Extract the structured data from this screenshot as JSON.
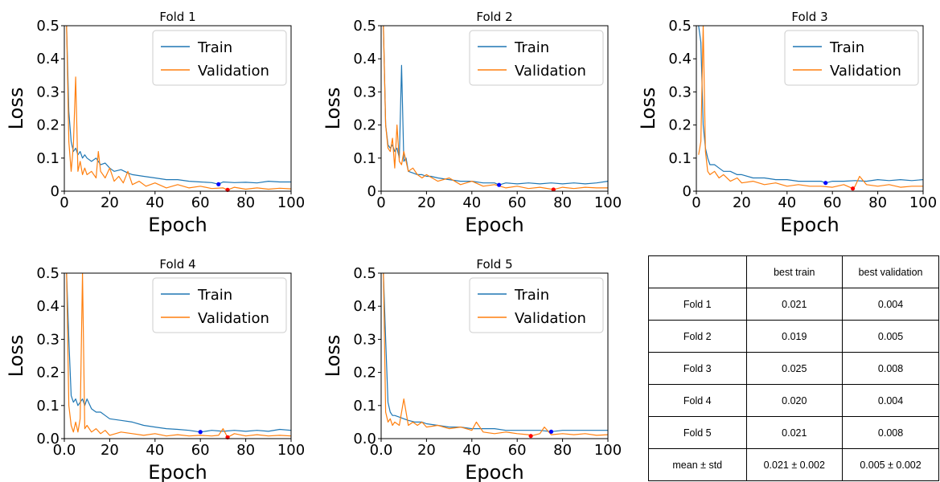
{
  "chart_data": [
    {
      "type": "line",
      "title": "Fold 1",
      "xlabel": "Epoch",
      "ylabel": "Loss",
      "xlim": [
        0,
        100
      ],
      "ylim": [
        0,
        0.5
      ],
      "xticks": [
        "0",
        "20",
        "40",
        "60",
        "80",
        "100"
      ],
      "yticks": [
        "0",
        "0.1",
        "0.2",
        "0.3",
        "0.4",
        "0.5"
      ],
      "legend": "top-right",
      "series": [
        {
          "name": "Train",
          "color": "#1f77b4",
          "x": [
            1,
            2,
            3,
            4,
            5,
            6,
            7,
            8,
            9,
            10,
            12,
            14,
            16,
            18,
            20,
            22,
            25,
            28,
            30,
            35,
            40,
            45,
            50,
            55,
            60,
            65,
            68,
            70,
            75,
            80,
            85,
            90,
            95,
            100
          ],
          "values": [
            0.5,
            0.24,
            0.15,
            0.12,
            0.13,
            0.11,
            0.12,
            0.1,
            0.11,
            0.1,
            0.09,
            0.1,
            0.08,
            0.085,
            0.07,
            0.06,
            0.065,
            0.055,
            0.05,
            0.045,
            0.04,
            0.035,
            0.035,
            0.03,
            0.028,
            0.026,
            0.021,
            0.028,
            0.026,
            0.027,
            0.025,
            0.03,
            0.028,
            0.028
          ],
          "best": {
            "x": 68,
            "y": 0.021,
            "color": "#0000ff"
          }
        },
        {
          "name": "Validation",
          "color": "#ff7f0e",
          "x": [
            1,
            2,
            3,
            4,
            5,
            6,
            7,
            8,
            9,
            10,
            12,
            14,
            15,
            16,
            18,
            20,
            22,
            24,
            26,
            28,
            30,
            33,
            36,
            40,
            45,
            50,
            55,
            60,
            65,
            70,
            72,
            75,
            80,
            85,
            90,
            95,
            100
          ],
          "values": [
            0.5,
            0.15,
            0.06,
            0.14,
            0.345,
            0.06,
            0.09,
            0.05,
            0.07,
            0.05,
            0.06,
            0.04,
            0.12,
            0.06,
            0.04,
            0.07,
            0.03,
            0.045,
            0.025,
            0.06,
            0.02,
            0.03,
            0.015,
            0.025,
            0.01,
            0.02,
            0.01,
            0.015,
            0.008,
            0.01,
            0.004,
            0.012,
            0.006,
            0.01,
            0.006,
            0.009,
            0.007
          ],
          "best": {
            "x": 72,
            "y": 0.004,
            "color": "#ff0000"
          }
        }
      ]
    },
    {
      "type": "line",
      "title": "Fold 2",
      "xlabel": "Epoch",
      "ylabel": "Loss",
      "xlim": [
        0,
        100
      ],
      "ylim": [
        0,
        0.5
      ],
      "xticks": [
        "0",
        "20",
        "40",
        "60",
        "80",
        "100"
      ],
      "yticks": [
        "0",
        "0.1",
        "0.2",
        "0.3",
        "0.4",
        "0.5"
      ],
      "legend": "top-right",
      "series": [
        {
          "name": "Train",
          "color": "#1f77b4",
          "x": [
            1,
            2,
            3,
            4,
            5,
            6,
            7,
            8,
            9,
            10,
            11,
            12,
            14,
            16,
            18,
            20,
            22,
            25,
            30,
            35,
            40,
            45,
            50,
            52,
            55,
            60,
            65,
            70,
            75,
            80,
            85,
            90,
            95,
            100
          ],
          "values": [
            0.5,
            0.2,
            0.14,
            0.13,
            0.14,
            0.12,
            0.13,
            0.1,
            0.38,
            0.09,
            0.1,
            0.06,
            0.055,
            0.05,
            0.05,
            0.045,
            0.045,
            0.04,
            0.035,
            0.03,
            0.03,
            0.025,
            0.025,
            0.019,
            0.025,
            0.022,
            0.025,
            0.022,
            0.025,
            0.022,
            0.025,
            0.022,
            0.025,
            0.03
          ],
          "best": {
            "x": 52,
            "y": 0.019,
            "color": "#0000ff"
          }
        },
        {
          "name": "Validation",
          "color": "#ff7f0e",
          "x": [
            1,
            2,
            3,
            4,
            5,
            6,
            7,
            8,
            9,
            10,
            12,
            14,
            16,
            18,
            20,
            25,
            30,
            35,
            40,
            45,
            50,
            55,
            60,
            65,
            70,
            76,
            80,
            85,
            90,
            95,
            100
          ],
          "values": [
            0.5,
            0.2,
            0.13,
            0.12,
            0.16,
            0.07,
            0.2,
            0.09,
            0.08,
            0.12,
            0.06,
            0.07,
            0.05,
            0.04,
            0.05,
            0.03,
            0.04,
            0.02,
            0.03,
            0.015,
            0.02,
            0.01,
            0.015,
            0.008,
            0.012,
            0.005,
            0.012,
            0.008,
            0.012,
            0.01,
            0.01
          ],
          "best": {
            "x": 76,
            "y": 0.005,
            "color": "#ff0000"
          }
        }
      ]
    },
    {
      "type": "line",
      "title": "Fold 3",
      "xlabel": "Epoch",
      "ylabel": "Loss",
      "xlim": [
        0,
        100
      ],
      "ylim": [
        0,
        0.5
      ],
      "xticks": [
        "0",
        "20",
        "40",
        "60",
        "80",
        "100"
      ],
      "yticks": [
        "0",
        "0.1",
        "0.2",
        "0.3",
        "0.4",
        "0.5"
      ],
      "legend": "top-right",
      "series": [
        {
          "name": "Train",
          "color": "#1f77b4",
          "x": [
            1,
            2,
            3,
            4,
            5,
            6,
            8,
            10,
            12,
            15,
            18,
            20,
            25,
            30,
            35,
            40,
            45,
            50,
            55,
            57,
            60,
            65,
            70,
            75,
            80,
            85,
            90,
            95,
            100
          ],
          "values": [
            0.5,
            0.45,
            0.2,
            0.13,
            0.1,
            0.08,
            0.08,
            0.07,
            0.06,
            0.06,
            0.05,
            0.05,
            0.04,
            0.04,
            0.035,
            0.035,
            0.03,
            0.03,
            0.03,
            0.025,
            0.03,
            0.03,
            0.032,
            0.03,
            0.035,
            0.032,
            0.035,
            0.032,
            0.035
          ],
          "best": {
            "x": 57,
            "y": 0.025,
            "color": "#0000ff"
          }
        },
        {
          "name": "Validation",
          "color": "#ff7f0e",
          "x": [
            1,
            2,
            3,
            4,
            5,
            6,
            8,
            10,
            12,
            15,
            18,
            20,
            25,
            30,
            35,
            40,
            45,
            50,
            55,
            60,
            65,
            69,
            70,
            72,
            75,
            80,
            85,
            90,
            95,
            100
          ],
          "values": [
            0.11,
            0.15,
            0.5,
            0.12,
            0.06,
            0.05,
            0.06,
            0.04,
            0.05,
            0.03,
            0.04,
            0.025,
            0.03,
            0.02,
            0.025,
            0.015,
            0.02,
            0.015,
            0.015,
            0.012,
            0.02,
            0.008,
            0.015,
            0.045,
            0.02,
            0.015,
            0.02,
            0.012,
            0.015,
            0.015
          ],
          "best": {
            "x": 69,
            "y": 0.008,
            "color": "#ff0000"
          }
        }
      ]
    },
    {
      "type": "line",
      "title": "Fold 4",
      "xlabel": "Epoch",
      "ylabel": "Loss",
      "xlim": [
        0,
        100
      ],
      "ylim": [
        0,
        0.5
      ],
      "xticks": [
        "0.0",
        "20",
        "40",
        "60",
        "80",
        "100"
      ],
      "yticks": [
        "0.0",
        "0.1",
        "0.2",
        "0.3",
        "0.4",
        "0.5"
      ],
      "legend": "top-right",
      "series": [
        {
          "name": "Train",
          "color": "#1f77b4",
          "x": [
            1,
            2,
            3,
            4,
            5,
            6,
            7,
            8,
            9,
            10,
            12,
            14,
            16,
            18,
            20,
            25,
            30,
            35,
            40,
            45,
            50,
            55,
            60,
            65,
            70,
            75,
            80,
            85,
            90,
            95,
            100
          ],
          "values": [
            0.5,
            0.3,
            0.13,
            0.11,
            0.12,
            0.1,
            0.11,
            0.12,
            0.1,
            0.12,
            0.09,
            0.08,
            0.08,
            0.07,
            0.06,
            0.055,
            0.05,
            0.04,
            0.035,
            0.03,
            0.028,
            0.025,
            0.02,
            0.025,
            0.022,
            0.025,
            0.022,
            0.025,
            0.022,
            0.028,
            0.025
          ],
          "best": {
            "x": 60,
            "y": 0.02,
            "color": "#0000ff"
          }
        },
        {
          "name": "Validation",
          "color": "#ff7f0e",
          "x": [
            1,
            2,
            3,
            4,
            5,
            6,
            7,
            8,
            9,
            10,
            12,
            14,
            16,
            18,
            20,
            25,
            30,
            35,
            40,
            45,
            50,
            55,
            60,
            65,
            68,
            70,
            72,
            75,
            80,
            85,
            90,
            95,
            100
          ],
          "values": [
            0.5,
            0.1,
            0.04,
            0.02,
            0.05,
            0.02,
            0.06,
            0.5,
            0.03,
            0.04,
            0.02,
            0.03,
            0.015,
            0.025,
            0.01,
            0.02,
            0.015,
            0.01,
            0.015,
            0.008,
            0.012,
            0.008,
            0.01,
            0.008,
            0.01,
            0.03,
            0.004,
            0.015,
            0.008,
            0.012,
            0.008,
            0.01,
            0.008
          ],
          "best": {
            "x": 72,
            "y": 0.004,
            "color": "#ff0000"
          }
        }
      ]
    },
    {
      "type": "line",
      "title": "Fold 5",
      "xlabel": "Epoch",
      "ylabel": "Loss",
      "xlim": [
        0,
        100
      ],
      "ylim": [
        0,
        0.5
      ],
      "xticks": [
        "0.0",
        "20",
        "40",
        "60",
        "80",
        "100"
      ],
      "yticks": [
        "0.0",
        "0.1",
        "0.2",
        "0.3",
        "0.4",
        "0.5"
      ],
      "legend": "top-right",
      "series": [
        {
          "name": "Train",
          "color": "#1f77b4",
          "x": [
            1,
            2,
            3,
            4,
            5,
            6,
            8,
            10,
            12,
            15,
            18,
            20,
            25,
            30,
            35,
            40,
            45,
            50,
            55,
            60,
            65,
            70,
            75,
            80,
            85,
            90,
            95,
            100
          ],
          "values": [
            0.5,
            0.3,
            0.11,
            0.08,
            0.07,
            0.07,
            0.065,
            0.06,
            0.055,
            0.05,
            0.05,
            0.045,
            0.04,
            0.035,
            0.035,
            0.03,
            0.03,
            0.03,
            0.025,
            0.025,
            0.025,
            0.025,
            0.021,
            0.025,
            0.025,
            0.025,
            0.025,
            0.025
          ],
          "best": {
            "x": 75,
            "y": 0.021,
            "color": "#0000ff"
          }
        },
        {
          "name": "Validation",
          "color": "#ff7f0e",
          "x": [
            1,
            2,
            3,
            4,
            5,
            6,
            8,
            10,
            12,
            14,
            16,
            18,
            20,
            25,
            30,
            35,
            40,
            42,
            45,
            50,
            55,
            60,
            65,
            66,
            70,
            72,
            75,
            80,
            85,
            90,
            95,
            100
          ],
          "values": [
            0.5,
            0.08,
            0.05,
            0.06,
            0.04,
            0.05,
            0.04,
            0.12,
            0.04,
            0.05,
            0.04,
            0.05,
            0.035,
            0.04,
            0.03,
            0.035,
            0.025,
            0.05,
            0.02,
            0.015,
            0.02,
            0.015,
            0.012,
            0.008,
            0.015,
            0.035,
            0.012,
            0.015,
            0.012,
            0.015,
            0.01,
            0.012
          ],
          "best": {
            "x": 66,
            "y": 0.008,
            "color": "#ff0000"
          }
        }
      ]
    }
  ],
  "table": {
    "header": [
      "",
      "best train",
      "best validation"
    ],
    "rows": [
      [
        "Fold 1",
        "0.021",
        "0.004"
      ],
      [
        "Fold 2",
        "0.019",
        "0.005"
      ],
      [
        "Fold 3",
        "0.025",
        "0.008"
      ],
      [
        "Fold 4",
        "0.020",
        "0.004"
      ],
      [
        "Fold 5",
        "0.021",
        "0.008"
      ],
      [
        "mean ± std",
        "0.021 ± 0.002",
        "0.005 ± 0.002"
      ]
    ]
  }
}
